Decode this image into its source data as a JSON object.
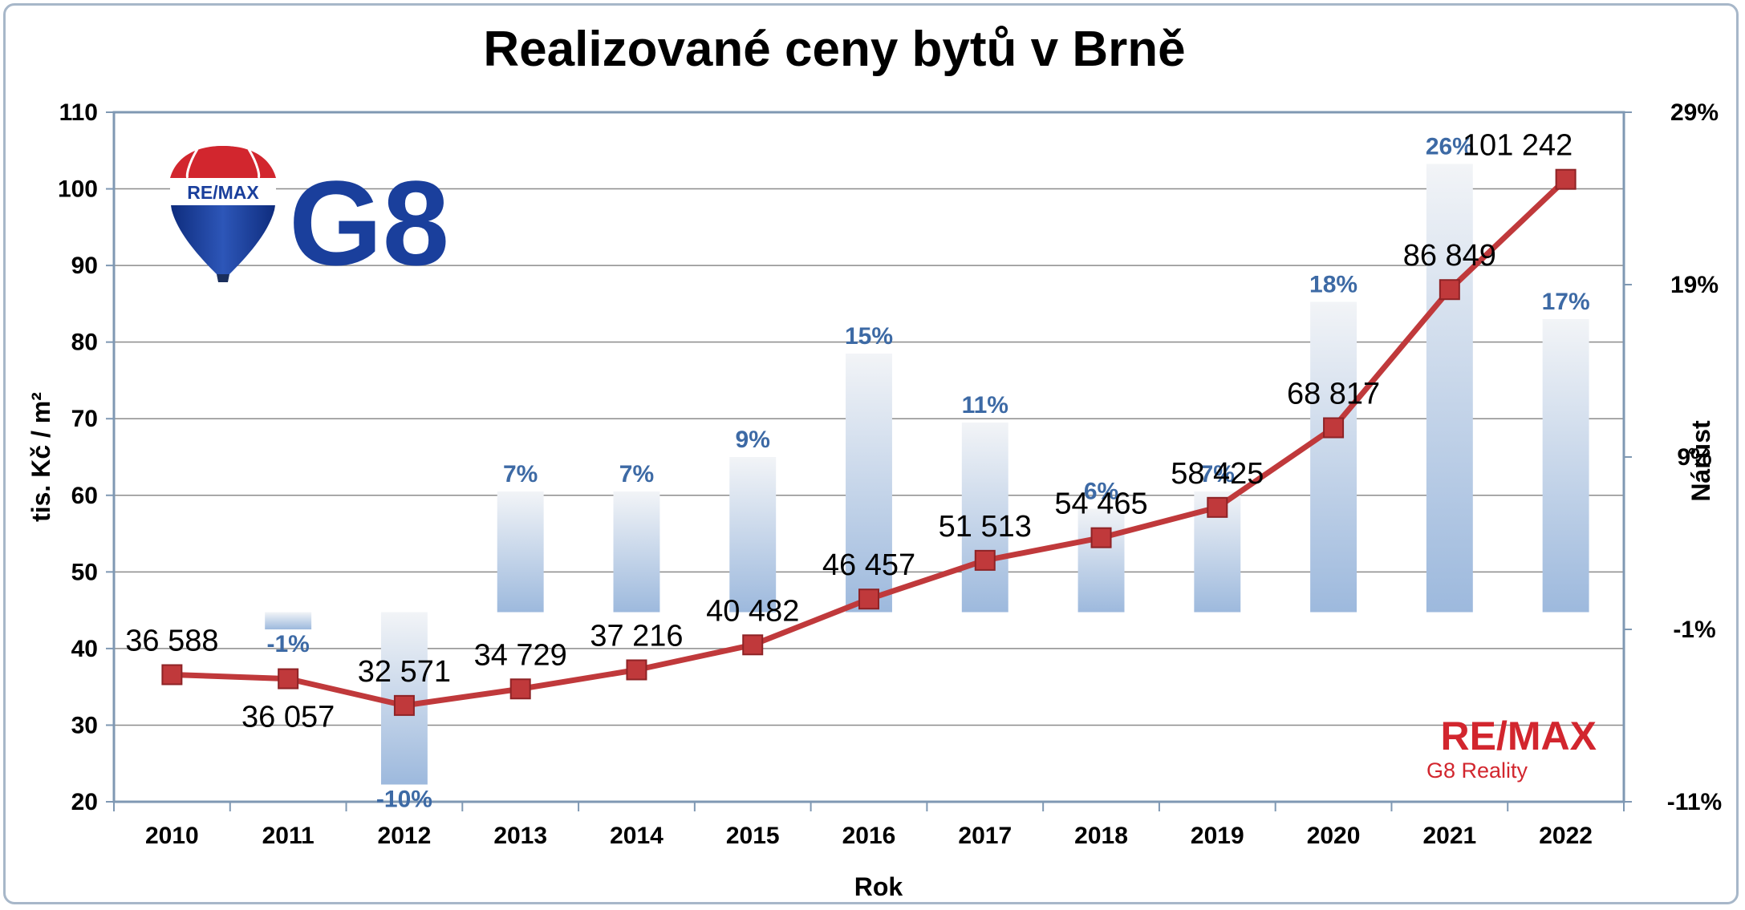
{
  "chart_data": {
    "type": "line",
    "title": "Realizované ceny bytů v Brně",
    "xlabel": "Rok",
    "ylabel": "tis. Kč / m²",
    "y2label": "Nárůst",
    "categories": [
      "2010",
      "2011",
      "2012",
      "2013",
      "2014",
      "2015",
      "2016",
      "2017",
      "2018",
      "2019",
      "2020",
      "2021",
      "2022"
    ],
    "ylim": [
      20,
      110
    ],
    "yticks": [
      "20",
      "30",
      "40",
      "50",
      "60",
      "70",
      "80",
      "90",
      "100",
      "110"
    ],
    "y2lim": [
      -11,
      29
    ],
    "y2ticks": [
      "-11%",
      "-1%",
      "9%",
      "19%",
      "29%"
    ],
    "grid": true,
    "series": [
      {
        "kind": "line",
        "values": [
          36588,
          36057,
          32571,
          34729,
          37216,
          40482,
          46457,
          51513,
          54465,
          58425,
          68817,
          86849,
          101242
        ],
        "labels": [
          "36 588",
          "36 057",
          "32 571",
          "34 729",
          "37 216",
          "40 482",
          "46 457",
          "51 513",
          "54 465",
          "58 425",
          "68 817",
          "86 849",
          "101 242"
        ],
        "color": "#c0393b"
      },
      {
        "kind": "bar",
        "axis": "secondary",
        "values": [
          null,
          -1,
          -10,
          7,
          7,
          9,
          15,
          11,
          6,
          7,
          18,
          26,
          17
        ],
        "labels": [
          "",
          "-1%",
          "-10%",
          "7%",
          "7%",
          "9%",
          "15%",
          "11%",
          "6%",
          "7%",
          "18%",
          "26%",
          "17%"
        ],
        "color": "#9db9dd"
      }
    ]
  },
  "logos": {
    "balloon_text": "RE/MAX",
    "g8_text": "G8",
    "remax_text": "RE/MAX",
    "remax_sub": "G8 Reality"
  },
  "colors": {
    "line": "#c0393b",
    "bar": "#9db9dd",
    "percent": "#3d6aa5",
    "brand_red": "#d2262e",
    "brand_blue": "#1a3f9c"
  }
}
